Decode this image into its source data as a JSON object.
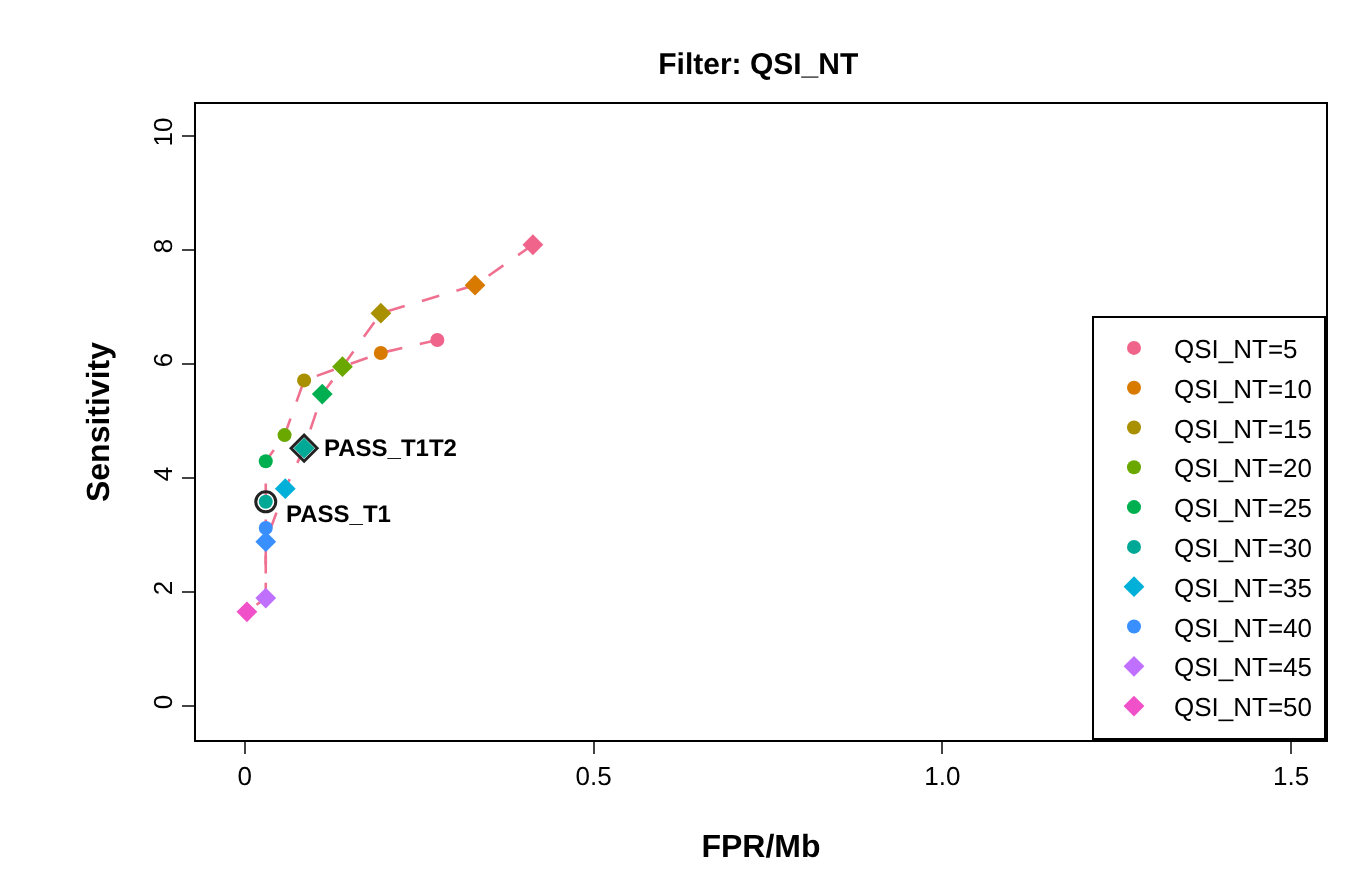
{
  "chart_data": {
    "type": "scatter",
    "title": "Filter: QSI_NT",
    "xlabel": "FPR/Mb",
    "ylabel": "Sensitivity",
    "xlim": [
      -0.07,
      1.55
    ],
    "ylim": [
      -0.6,
      10.56
    ],
    "xticks": [
      0,
      0.5,
      {
        "value": 1,
        "label": "1.0"
      },
      1.5
    ],
    "yticks": [
      0,
      2,
      4,
      6,
      8,
      10
    ],
    "legend": "bottom right",
    "series": [
      {
        "type": "line",
        "color": "#f07090",
        "line_style": "dashed",
        "marker": "none",
        "x": [
          0.276,
          0.195,
          0.085,
          0.057,
          0.03,
          0.03,
          0.03,
          0.03,
          0.003
        ],
        "values": [
          6.42,
          6.19,
          5.71,
          4.75,
          4.29,
          3.58,
          3.12,
          1.89,
          1.65
        ]
      },
      {
        "type": "line",
        "color": "#f07090",
        "line_style": "dashed",
        "marker": "none",
        "x": [
          0.413,
          0.33,
          0.195,
          0.14,
          0.111,
          0.085,
          0.058,
          0.03,
          0.03
        ],
        "values": [
          8.09,
          7.38,
          6.89,
          5.95,
          5.47,
          4.52,
          3.81,
          2.88,
          1.89
        ]
      },
      {
        "name": "QSI_NT=5",
        "color": "#f0648c",
        "marker": "circle",
        "x": [
          0.276
        ],
        "values": [
          6.42
        ]
      },
      {
        "name": "QSI_NT=10",
        "color": "#d97a00",
        "marker": "circle",
        "x": [
          0.195
        ],
        "values": [
          6.19
        ]
      },
      {
        "name": "QSI_NT=15",
        "color": "#a89000",
        "marker": "circle",
        "x": [
          0.085
        ],
        "values": [
          5.71
        ]
      },
      {
        "name": "QSI_NT=20",
        "color": "#6aa800",
        "marker": "circle",
        "x": [
          0.057
        ],
        "values": [
          4.75
        ]
      },
      {
        "name": "QSI_NT=25",
        "color": "#00b050",
        "marker": "circle",
        "x": [
          0.03
        ],
        "values": [
          4.29
        ]
      },
      {
        "name": "QSI_NT=30",
        "color": "#00a896",
        "marker": "circle",
        "x": [
          0.03
        ],
        "values": [
          3.58
        ]
      },
      {
        "name": "QSI_NT=35",
        "color": "#00b0d8",
        "marker": "diamond",
        "x": [
          0.058
        ],
        "values": [
          3.81
        ]
      },
      {
        "name": "QSI_NT=40",
        "color": "#3a8fff",
        "marker": "circle",
        "x": [
          0.03
        ],
        "values": [
          3.12
        ]
      },
      {
        "name": "QSI_NT=45",
        "color": "#c070ff",
        "marker": "diamond",
        "x": [
          0.03
        ],
        "values": [
          1.89
        ]
      },
      {
        "name": "QSI_NT=50",
        "color": "#f050c8",
        "marker": "diamond",
        "x": [
          0.003
        ],
        "values": [
          1.65
        ]
      },
      {
        "color": "#f0648c",
        "marker": "diamond",
        "x": [
          0.413
        ],
        "values": [
          8.09
        ]
      },
      {
        "color": "#d97a00",
        "marker": "diamond",
        "x": [
          0.33
        ],
        "values": [
          7.38
        ]
      },
      {
        "color": "#a89000",
        "marker": "diamond",
        "x": [
          0.195
        ],
        "values": [
          6.89
        ]
      },
      {
        "color": "#6aa800",
        "marker": "diamond",
        "x": [
          0.14
        ],
        "values": [
          5.95
        ]
      },
      {
        "color": "#00b050",
        "marker": "diamond",
        "x": [
          0.111
        ],
        "values": [
          5.47
        ]
      },
      {
        "color": "#00a896",
        "marker": "diamond",
        "x": [
          0.085
        ],
        "values": [
          4.52
        ]
      },
      {
        "color": "#3a8fff",
        "marker": "diamond",
        "x": [
          0.03
        ],
        "values": [
          2.88
        ]
      }
    ],
    "annotations": [
      {
        "text": "PASS_T1",
        "x": 0.03,
        "y": 3.58
      },
      {
        "text": "PASS_T1T2",
        "x": 0.085,
        "y": 4.52
      }
    ]
  }
}
